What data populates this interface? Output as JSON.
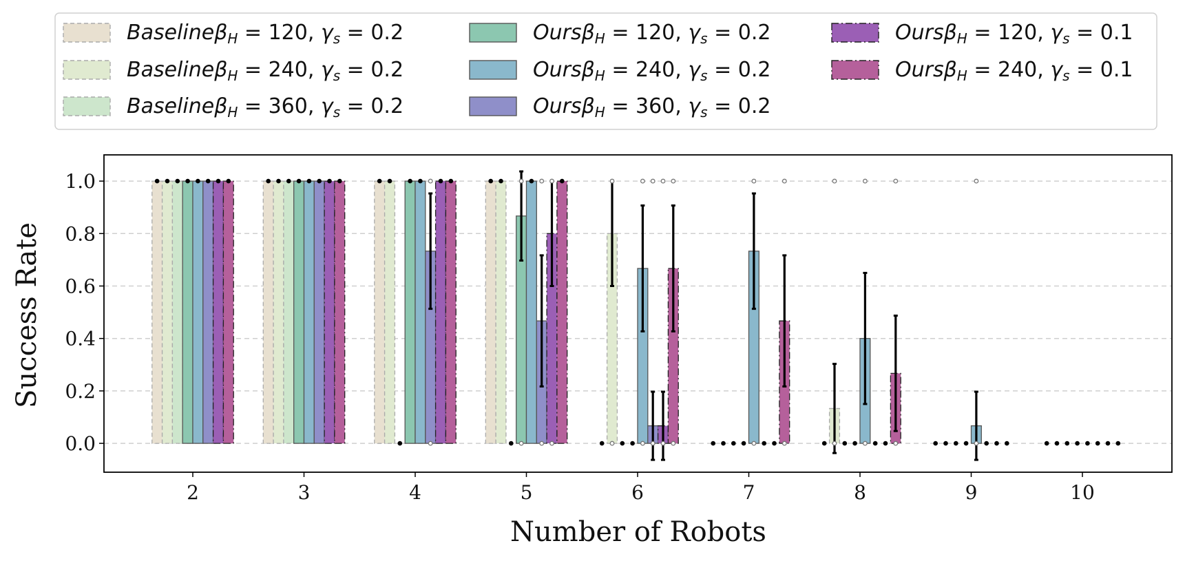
{
  "chart_data": {
    "type": "bar",
    "title": "",
    "xlabel": "Number of Robots",
    "ylabel": "Success Rate",
    "categories": [
      "2",
      "3",
      "4",
      "5",
      "6",
      "7",
      "8",
      "9",
      "10"
    ],
    "yticks": [
      "0.0",
      "0.2",
      "0.4",
      "0.6",
      "0.8",
      "1.0"
    ],
    "ylim": [
      -0.11,
      1.1
    ],
    "grid": true,
    "legend_position": "top (above plot), 3 columns",
    "series": [
      {
        "name": "Baseline",
        "beta": "120",
        "gamma": "0.2",
        "color": "#e8e0d0",
        "edge": "#aaaaaa",
        "dash": "dashed",
        "values": [
          1.0,
          1.0,
          1.0,
          1.0,
          0.0,
          0.0,
          0.0,
          0.0,
          0.0
        ],
        "errors": [
          0,
          0,
          0,
          0,
          0,
          0,
          0,
          0,
          0
        ]
      },
      {
        "name": "Baseline",
        "beta": "240",
        "gamma": "0.2",
        "color": "#e0ead0",
        "edge": "#aaaaaa",
        "dash": "dashed",
        "values": [
          1.0,
          1.0,
          1.0,
          1.0,
          0.8,
          0.0,
          0.133,
          0.0,
          0.0
        ],
        "errors": [
          0,
          0,
          0,
          0,
          0.2,
          0,
          0.17,
          0,
          0
        ]
      },
      {
        "name": "Baseline",
        "beta": "360",
        "gamma": "0.2",
        "color": "#cde6cc",
        "edge": "#aaaaaa",
        "dash": "dashed",
        "values": [
          1.0,
          1.0,
          0.0,
          0.0,
          0.0,
          0.0,
          0.0,
          0.0,
          0.0
        ],
        "errors": [
          0,
          0,
          0,
          0,
          0,
          0,
          0,
          0,
          0
        ]
      },
      {
        "name": "Ours",
        "beta": "120",
        "gamma": "0.2",
        "color": "#8cc7b0",
        "edge": "#555555",
        "dash": "solid",
        "values": [
          1.0,
          1.0,
          1.0,
          0.867,
          0.0,
          0.0,
          0.0,
          0.0,
          0.0
        ],
        "errors": [
          0,
          0,
          0,
          0.17,
          0,
          0,
          0,
          0,
          0
        ]
      },
      {
        "name": "Ours",
        "beta": "240",
        "gamma": "0.2",
        "color": "#8ab8cc",
        "edge": "#555555",
        "dash": "solid",
        "values": [
          1.0,
          1.0,
          1.0,
          1.0,
          0.667,
          0.733,
          0.4,
          0.067,
          0.0
        ],
        "errors": [
          0,
          0,
          0,
          0,
          0.24,
          0.22,
          0.25,
          0.13,
          0
        ]
      },
      {
        "name": "Ours",
        "beta": "360",
        "gamma": "0.2",
        "color": "#8f8fc9",
        "edge": "#555555",
        "dash": "solid",
        "values": [
          1.0,
          1.0,
          0.733,
          0.467,
          0.067,
          0.0,
          0.0,
          0.0,
          0.0
        ],
        "errors": [
          0,
          0,
          0.22,
          0.25,
          0.13,
          0,
          0,
          0,
          0
        ]
      },
      {
        "name": "Ours",
        "beta": "120",
        "gamma": "0.1",
        "color": "#9b5fb5",
        "edge": "#222222",
        "dash": "dashdot",
        "values": [
          1.0,
          1.0,
          1.0,
          0.8,
          0.067,
          0.0,
          0.0,
          0.0,
          0.0
        ],
        "errors": [
          0,
          0,
          0,
          0.2,
          0.13,
          0,
          0,
          0,
          0
        ]
      },
      {
        "name": "Ours",
        "beta": "240",
        "gamma": "0.1",
        "color": "#b5609b",
        "edge": "#222222",
        "dash": "dashdot",
        "values": [
          1.0,
          1.0,
          1.0,
          1.0,
          0.667,
          0.467,
          0.267,
          0.0,
          0.0
        ],
        "errors": [
          0,
          0,
          0,
          0,
          0.24,
          0.25,
          0.22,
          0,
          0
        ]
      }
    ]
  }
}
